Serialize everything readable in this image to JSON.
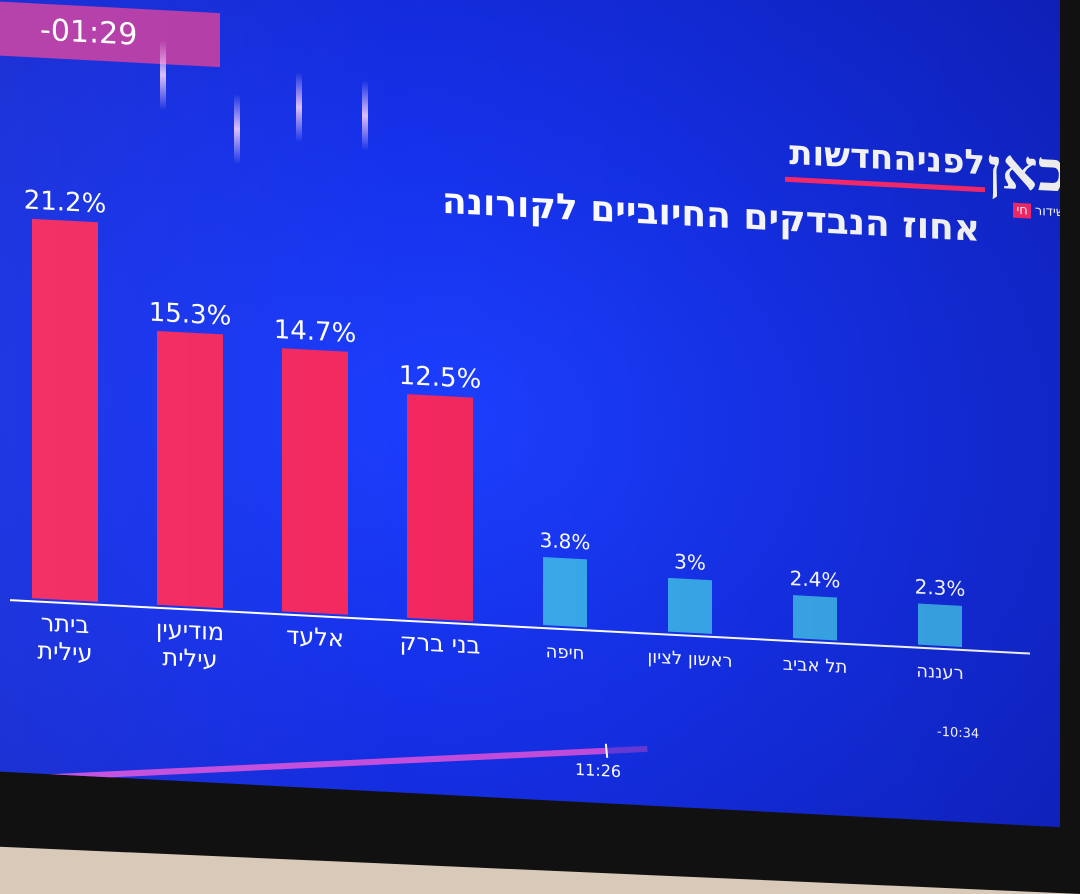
{
  "broadcast": {
    "timer": "-01:29",
    "logo_text": "לפניהחדשות",
    "channel_logo": "כאן",
    "live_prefix": "שידור",
    "live_tag": "חי",
    "current_time": "11:26",
    "time_remaining": "-10:34",
    "progress_fraction": 0.93
  },
  "colors": {
    "screen_bg": "#1530e8",
    "bar_high": "#f2285f",
    "bar_low": "#3aa9ec",
    "axis": "#ffffff",
    "text": "#ffffff"
  },
  "chart_data": {
    "type": "bar",
    "title": "אחוז הנבדקים החיוביים לקורונה",
    "xlabel": "",
    "ylabel": "",
    "ylim": [
      0,
      22
    ],
    "grid": false,
    "categories": [
      "ביתר עילית",
      "מודיעין עילית",
      "אלעד",
      "בני ברק",
      "חיפה",
      "ראשון לציון",
      "תל אביב",
      "רעננה"
    ],
    "values": [
      21.2,
      15.3,
      14.7,
      12.5,
      3.8,
      3,
      2.4,
      2.3
    ],
    "value_labels": [
      "21.2%",
      "15.3%",
      "14.7%",
      "12.5%",
      "3.8%",
      "3%",
      "2.4%",
      "2.3%"
    ],
    "bar_colors": [
      "#f2285f",
      "#f2285f",
      "#f2285f",
      "#f2285f",
      "#3aa9ec",
      "#3aa9ec",
      "#3aa9ec",
      "#3aa9ec"
    ]
  }
}
